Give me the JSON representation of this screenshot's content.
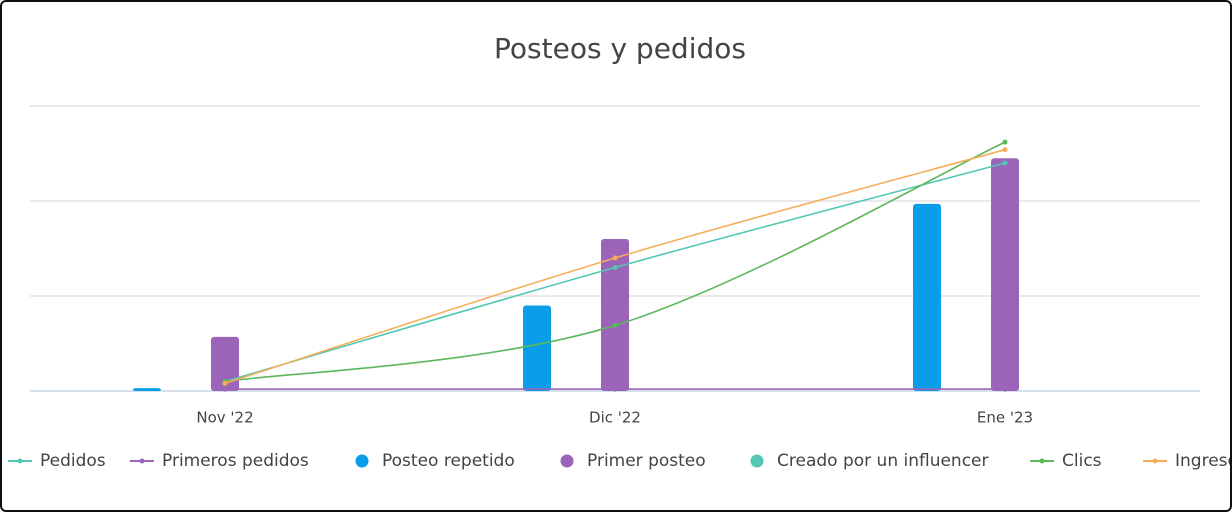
{
  "chart_data": {
    "type": "combo",
    "title": "Posteos y pedidos",
    "categories": [
      "Nov '22",
      "Dic '22",
      "Ene '23"
    ],
    "ylim": [
      0,
      3
    ],
    "grid_lines": [
      0,
      1,
      2,
      3
    ],
    "series": [
      {
        "name": "Pedidos",
        "type": "line",
        "color": "#52c7b3",
        "values": [
          0.1,
          1.3,
          2.4
        ]
      },
      {
        "name": "Primeros pedidos",
        "type": "line",
        "color": "#9b64b8",
        "values": [
          0.02,
          0.02,
          0.02
        ]
      },
      {
        "name": "Posteo repetido",
        "type": "bar",
        "color": "#0b9de8",
        "values": [
          0.03,
          0.9,
          1.97
        ]
      },
      {
        "name": "Primer posteo",
        "type": "bar",
        "color": "#9b64b8",
        "values": [
          0.57,
          1.6,
          2.45
        ]
      },
      {
        "name": "Creado por un influencer",
        "type": "bar",
        "color": "#52c7b3",
        "values": [
          0,
          0,
          0
        ]
      },
      {
        "name": "Clics",
        "type": "line",
        "color": "#5cb85c",
        "values": [
          0.1,
          0.69,
          2.62
        ]
      },
      {
        "name": "Ingresos",
        "type": "line",
        "color": "#f5ad5a",
        "values": [
          0.08,
          1.4,
          2.54
        ]
      }
    ]
  }
}
